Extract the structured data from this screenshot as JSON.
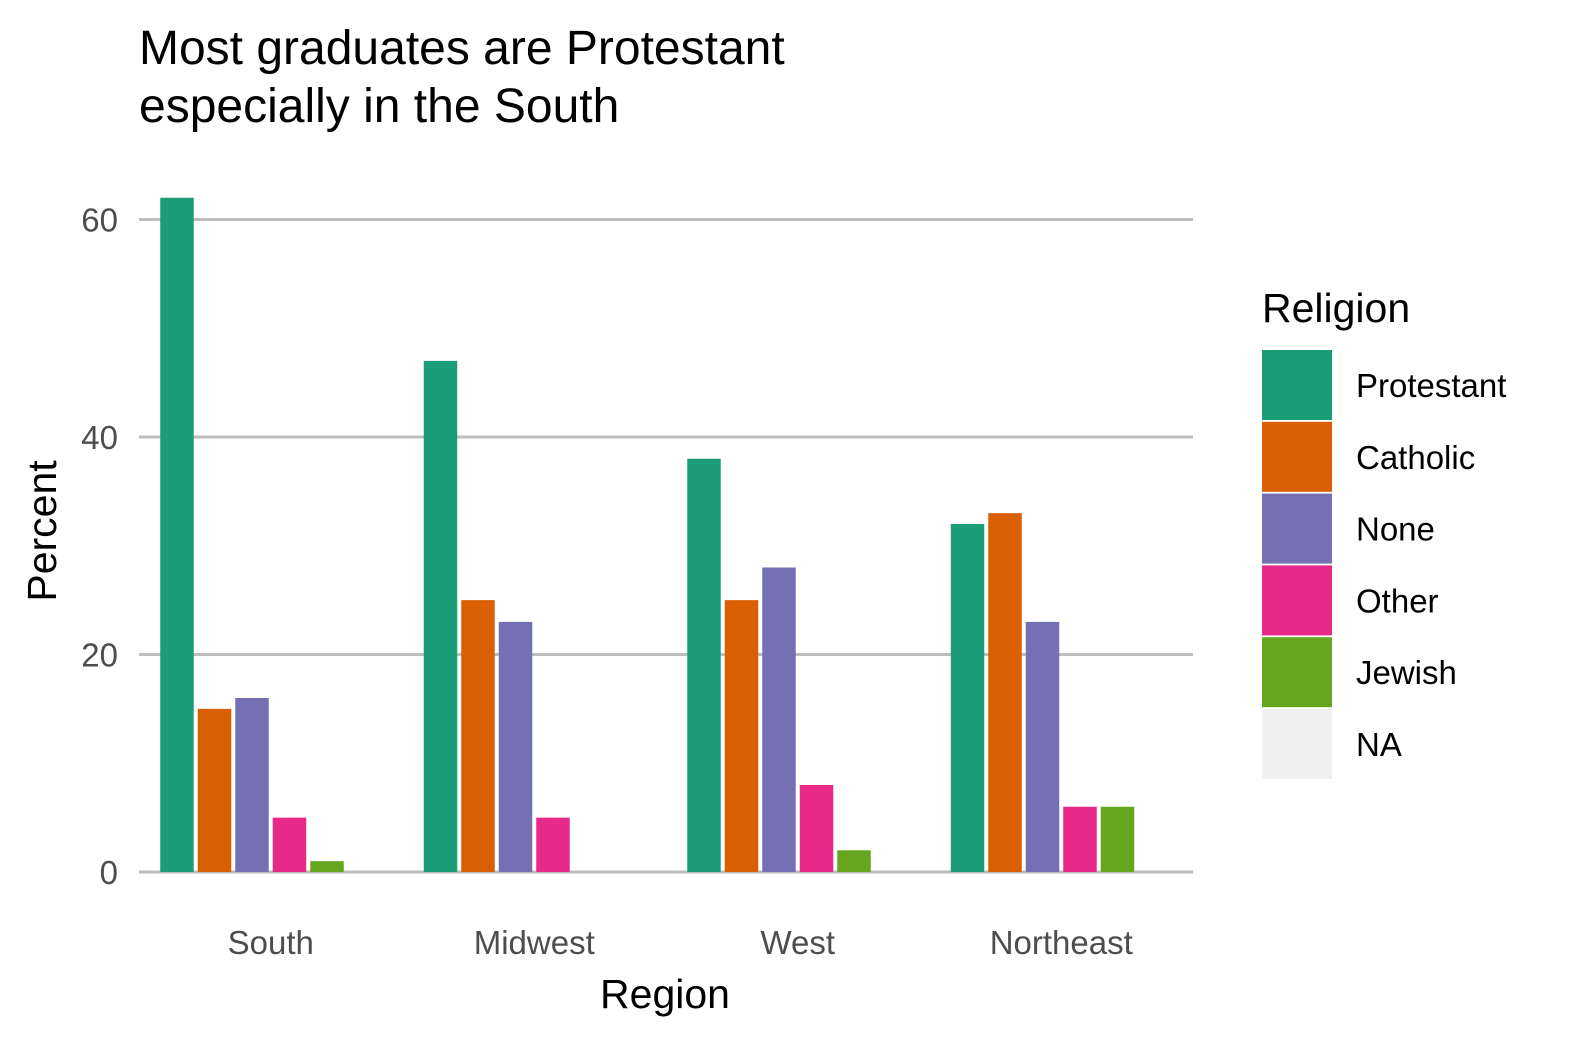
{
  "chart_data": {
    "type": "bar",
    "title_line1": "Most graduates are Protestant",
    "title_line2": "especially in the South",
    "xlabel": "Region",
    "ylabel": "Percent",
    "categories": [
      "South",
      "Midwest",
      "West",
      "Northeast"
    ],
    "ylim": [
      0,
      64
    ],
    "yticks": [
      0,
      20,
      40,
      60
    ],
    "grid": "horizontal major",
    "legend": {
      "title": "Religion",
      "position": "right",
      "entries": [
        "Protestant",
        "Catholic",
        "None",
        "Other",
        "Jewish",
        "NA"
      ]
    },
    "series": [
      {
        "name": "Protestant",
        "color": "#1b9e77",
        "values": [
          62,
          47,
          38,
          32
        ]
      },
      {
        "name": "Catholic",
        "color": "#d95f02",
        "values": [
          15,
          25,
          25,
          33
        ]
      },
      {
        "name": "None",
        "color": "#7570b3",
        "values": [
          16,
          23,
          28,
          23
        ]
      },
      {
        "name": "Other",
        "color": "#e7298a",
        "values": [
          5,
          5,
          8,
          6
        ]
      },
      {
        "name": "Jewish",
        "color": "#66a61e",
        "values": [
          1,
          0,
          2,
          6
        ]
      },
      {
        "name": "NA",
        "color": "#f0f0f0",
        "values": [
          null,
          null,
          null,
          null
        ]
      }
    ]
  }
}
